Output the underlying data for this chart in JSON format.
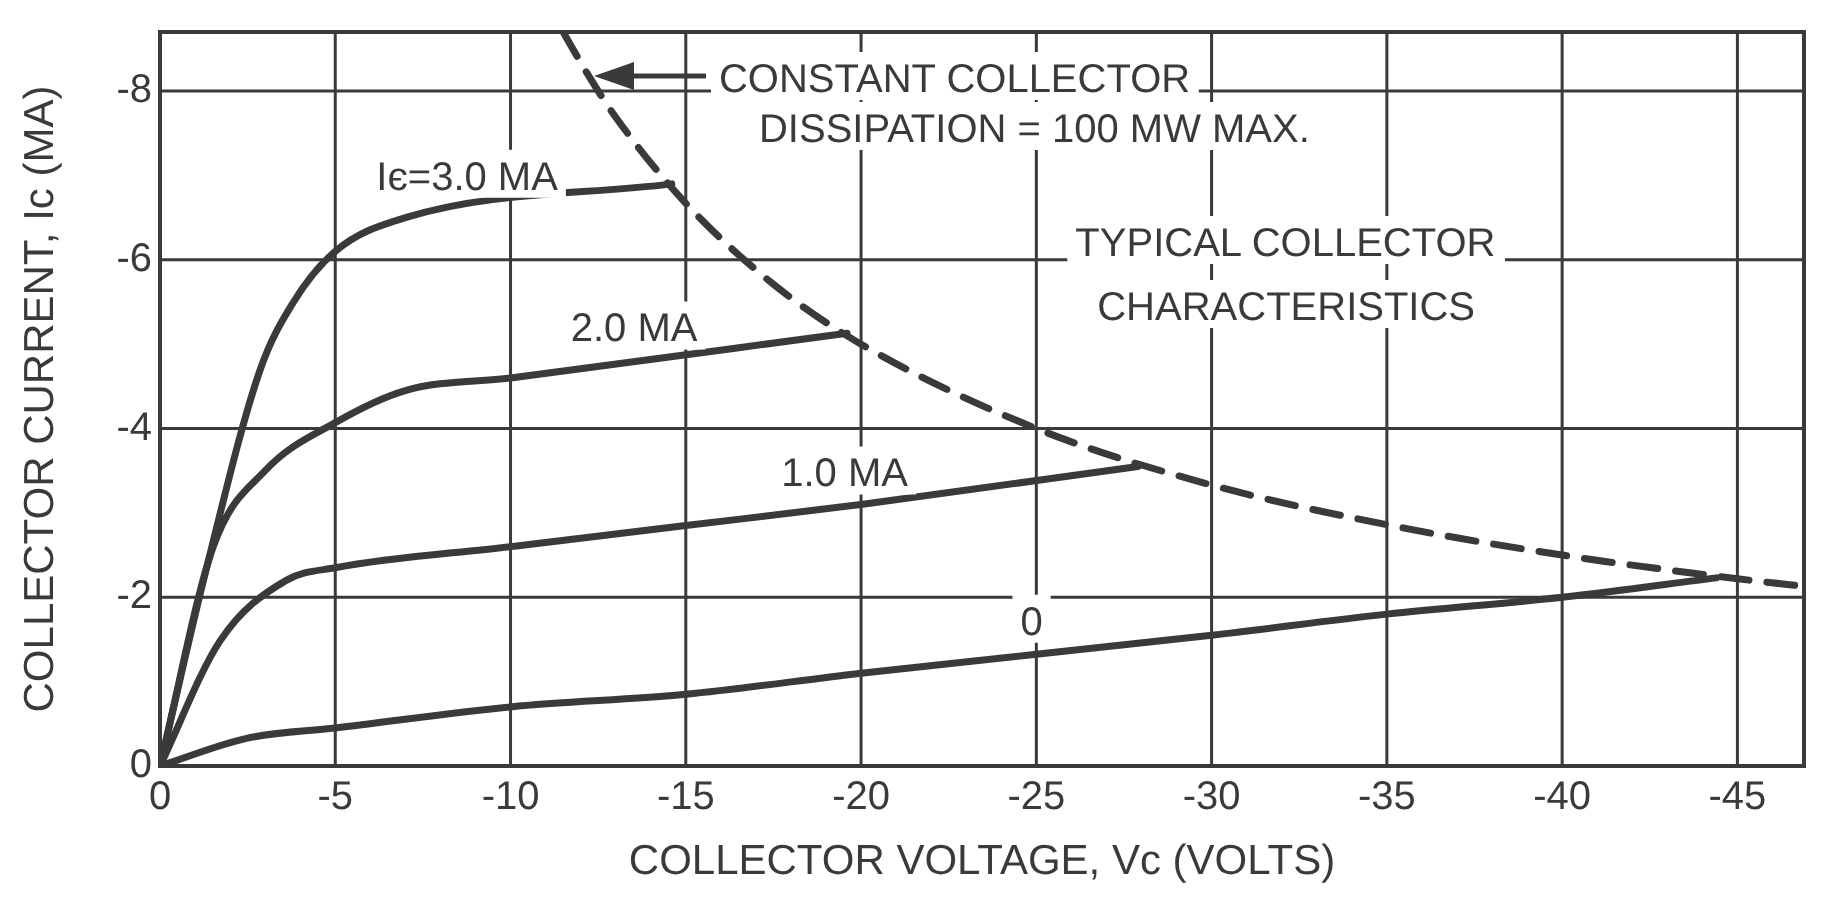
{
  "chart_data": {
    "type": "line",
    "title": "TYPICAL COLLECTOR CHARACTERISTICS",
    "xlabel": "COLLECTOR VOLTAGE, Vc (VOLTS)",
    "ylabel": "COLLECTOR CURRENT, Ic (MA)",
    "series": [
      {
        "name": "Iє=3.0 MA",
        "color": "#3a3a3a",
        "x": [
          0,
          -1.33,
          -2.86,
          -3.81,
          -5,
          -7,
          -14.6
        ],
        "values": [
          0,
          -2.35,
          -4.7,
          -5.5,
          -6.1,
          -6.5,
          -6.9
        ]
      },
      {
        "name": "2.0 MA",
        "color": "#3a3a3a",
        "x": [
          0,
          -1.52,
          -3,
          -5,
          -7,
          -10,
          -19.6
        ],
        "values": [
          0,
          -2.6,
          -3.5,
          -4.07,
          -4.45,
          -4.6,
          -5.13
        ]
      },
      {
        "name": "1.0 MA",
        "color": "#3a3a3a",
        "x": [
          0,
          -1.71,
          -3.6,
          -5,
          -10,
          -15,
          -20,
          -27.9
        ],
        "values": [
          0,
          -1.48,
          -2.2,
          -2.35,
          -2.6,
          -2.85,
          -3.1,
          -3.55
        ]
      },
      {
        "name": "0",
        "color": "#3a3a3a",
        "x": [
          0,
          -2.5,
          -5,
          -10,
          -15,
          -20,
          -30,
          -35,
          -40,
          -44.4
        ],
        "values": [
          0,
          -0.33,
          -0.45,
          -0.7,
          -0.85,
          -1.1,
          -1.55,
          -1.8,
          -2.0,
          -2.23
        ]
      },
      {
        "color": "#3a3a3a",
        "line_style": "dashed",
        "x": [
          -11.5,
          -12.2,
          -13,
          -15,
          -17.5,
          -20,
          -25,
          -30,
          -35,
          -40,
          -45,
          -46.9
        ],
        "values": [
          -8.7,
          -8.2,
          -7.69,
          -6.67,
          -5.71,
          -5.0,
          -4.0,
          -3.33,
          -2.86,
          -2.5,
          -2.22,
          -2.13
        ]
      }
    ],
    "xlim": [
      0,
      -46.9
    ],
    "xticks": [
      0,
      -5,
      -10,
      -15,
      -20,
      -25,
      -30,
      -35,
      -40,
      -45
    ],
    "ylim": [
      0,
      -8.7
    ],
    "yticks": [
      0,
      -2,
      -4,
      -6,
      -8
    ],
    "annotations": [
      "CONSTANT COLLECTOR DISSIPATION = 100 MW MAX."
    ],
    "grid": true,
    "legend": false,
    "marker": "none",
    "line_style": "solid"
  }
}
